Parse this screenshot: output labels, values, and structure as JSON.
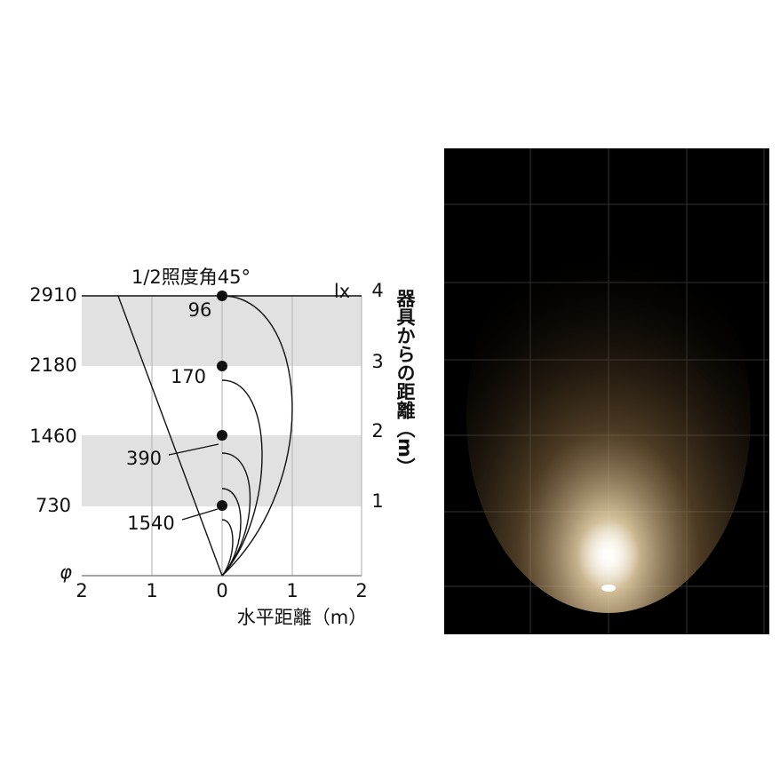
{
  "diagram": {
    "title": "1/2照度角45°",
    "unit": "lx",
    "illuminance_labels": [
      "2910",
      "2180",
      "1460",
      "730"
    ],
    "origin": "φ",
    "x_ticks": [
      "2",
      "1",
      "0",
      "1",
      "2"
    ],
    "x_label": "水平距離（m）",
    "y_ticks": [
      "4",
      "3",
      "2",
      "1"
    ],
    "y_label": "器具からの距離（m）",
    "point_labels": [
      "96",
      "170",
      "390",
      "1540"
    ]
  }
}
